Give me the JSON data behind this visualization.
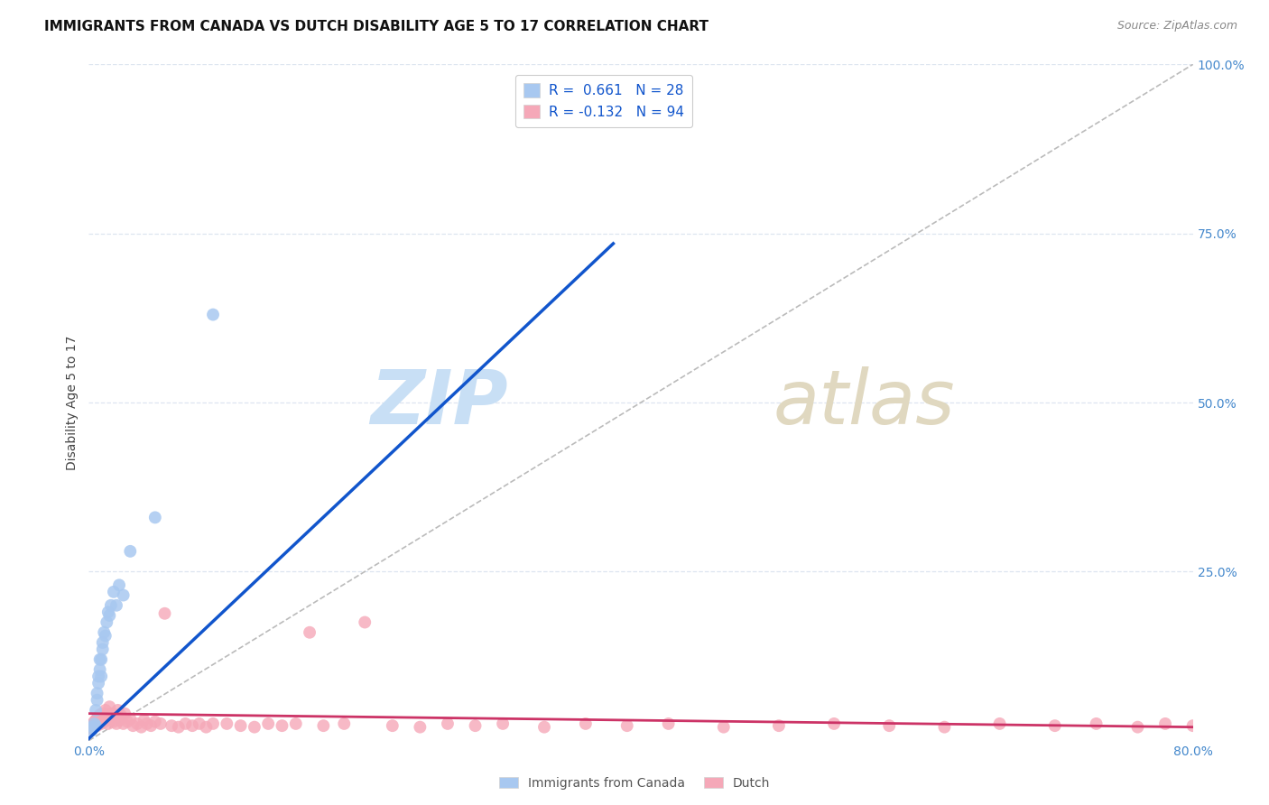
{
  "title": "IMMIGRANTS FROM CANADA VS DUTCH DISABILITY AGE 5 TO 17 CORRELATION CHART",
  "source": "Source: ZipAtlas.com",
  "ylabel": "Disability Age 5 to 17",
  "xlim": [
    0.0,
    0.8
  ],
  "ylim": [
    0.0,
    1.0
  ],
  "xticks": [
    0.0,
    0.2,
    0.4,
    0.6,
    0.8
  ],
  "xticklabels": [
    "0.0%",
    "",
    "",
    "",
    "80.0%"
  ],
  "yticks_right": [
    0.25,
    0.5,
    0.75,
    1.0
  ],
  "yticklabels_right": [
    "25.0%",
    "50.0%",
    "75.0%",
    "100.0%"
  ],
  "canada_color": "#a8c8f0",
  "dutch_color": "#f5a8b8",
  "canada_line_color": "#1155cc",
  "dutch_line_color": "#cc3366",
  "diagonal_color": "#bbbbbb",
  "legend_R_canada": "0.661",
  "legend_N_canada": "28",
  "legend_R_dutch": "-0.132",
  "legend_N_dutch": "94",
  "legend_text_color": "#1155cc",
  "canada_scatter_x": [
    0.002,
    0.003,
    0.004,
    0.005,
    0.005,
    0.006,
    0.006,
    0.007,
    0.007,
    0.008,
    0.008,
    0.009,
    0.009,
    0.01,
    0.01,
    0.011,
    0.012,
    0.013,
    0.014,
    0.015,
    0.016,
    0.018,
    0.02,
    0.022,
    0.025,
    0.03,
    0.048,
    0.09
  ],
  "canada_scatter_y": [
    0.015,
    0.02,
    0.025,
    0.022,
    0.045,
    0.06,
    0.07,
    0.085,
    0.095,
    0.105,
    0.12,
    0.095,
    0.12,
    0.135,
    0.145,
    0.16,
    0.155,
    0.175,
    0.19,
    0.185,
    0.2,
    0.22,
    0.2,
    0.23,
    0.215,
    0.28,
    0.33,
    0.63
  ],
  "dutch_scatter_x": [
    0.001,
    0.002,
    0.002,
    0.003,
    0.003,
    0.004,
    0.004,
    0.005,
    0.005,
    0.006,
    0.006,
    0.006,
    0.007,
    0.007,
    0.008,
    0.008,
    0.009,
    0.009,
    0.01,
    0.01,
    0.011,
    0.012,
    0.012,
    0.013,
    0.013,
    0.014,
    0.015,
    0.015,
    0.016,
    0.017,
    0.018,
    0.019,
    0.02,
    0.021,
    0.022,
    0.023,
    0.025,
    0.026,
    0.028,
    0.03,
    0.032,
    0.035,
    0.038,
    0.04,
    0.042,
    0.045,
    0.048,
    0.052,
    0.055,
    0.06,
    0.065,
    0.07,
    0.075,
    0.08,
    0.085,
    0.09,
    0.1,
    0.11,
    0.12,
    0.13,
    0.14,
    0.15,
    0.16,
    0.17,
    0.185,
    0.2,
    0.22,
    0.24,
    0.26,
    0.28,
    0.3,
    0.33,
    0.36,
    0.39,
    0.42,
    0.46,
    0.5,
    0.54,
    0.58,
    0.62,
    0.66,
    0.7,
    0.73,
    0.76,
    0.78,
    0.8,
    0.81,
    0.82,
    0.83,
    0.84,
    0.85,
    0.86,
    0.87,
    0.88
  ],
  "dutch_scatter_y": [
    0.02,
    0.018,
    0.022,
    0.025,
    0.02,
    0.022,
    0.028,
    0.025,
    0.03,
    0.022,
    0.028,
    0.032,
    0.025,
    0.035,
    0.03,
    0.038,
    0.025,
    0.032,
    0.03,
    0.04,
    0.028,
    0.035,
    0.045,
    0.03,
    0.038,
    0.025,
    0.038,
    0.05,
    0.032,
    0.04,
    0.028,
    0.038,
    0.025,
    0.045,
    0.03,
    0.038,
    0.025,
    0.04,
    0.028,
    0.032,
    0.022,
    0.025,
    0.02,
    0.03,
    0.025,
    0.022,
    0.028,
    0.025,
    0.188,
    0.022,
    0.02,
    0.025,
    0.022,
    0.025,
    0.02,
    0.025,
    0.025,
    0.022,
    0.02,
    0.025,
    0.022,
    0.025,
    0.16,
    0.022,
    0.025,
    0.175,
    0.022,
    0.02,
    0.025,
    0.022,
    0.025,
    0.02,
    0.025,
    0.022,
    0.025,
    0.02,
    0.022,
    0.025,
    0.022,
    0.02,
    0.025,
    0.022,
    0.025,
    0.02,
    0.025,
    0.022,
    0.02,
    0.025,
    0.022,
    0.02,
    0.025,
    0.022,
    0.02,
    0.025
  ],
  "canada_line_x0": 0.0,
  "canada_line_y0": 0.003,
  "canada_line_x1": 0.38,
  "canada_line_y1": 0.735,
  "dutch_line_x0": 0.0,
  "dutch_line_y0": 0.04,
  "dutch_line_x1": 0.8,
  "dutch_line_y1": 0.02,
  "background_color": "#ffffff",
  "grid_color": "#dde5f0",
  "title_fontsize": 11,
  "axis_label_fontsize": 10,
  "tick_fontsize": 10,
  "tick_color": "#4488cc",
  "source_fontsize": 9
}
